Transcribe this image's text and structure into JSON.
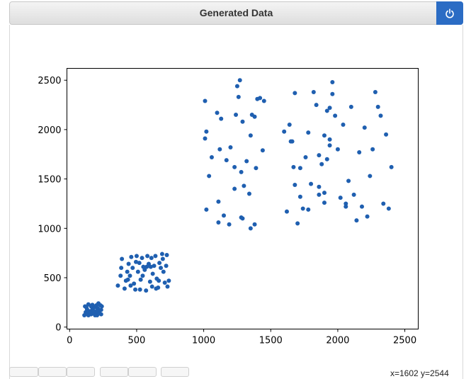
{
  "window": {
    "title": "Generated Data",
    "power_icon": "power-icon"
  },
  "status": {
    "coordinates": "x=1602 y=2544"
  },
  "toolbar": {
    "buttons": [
      "home-icon",
      "back-icon",
      "forward-icon",
      "pan-icon",
      "zoom-icon",
      "save-icon"
    ]
  },
  "chart_data": {
    "type": "scatter",
    "title": "",
    "xlabel": "",
    "ylabel": "",
    "xlim": [
      -20,
      2600
    ],
    "ylim": [
      -20,
      2620
    ],
    "xticks": [
      "0",
      "500",
      "1000",
      "1500",
      "2000",
      "2500"
    ],
    "yticks": [
      "0",
      "500",
      "1000",
      "1500",
      "2000",
      "2500"
    ],
    "grid": false,
    "color": "#1f5fb0",
    "points": [
      [
        110,
        120
      ],
      [
        120,
        150
      ],
      [
        130,
        140
      ],
      [
        115,
        210
      ],
      [
        140,
        230
      ],
      [
        160,
        130
      ],
      [
        170,
        180
      ],
      [
        185,
        200
      ],
      [
        195,
        150
      ],
      [
        205,
        120
      ],
      [
        215,
        240
      ],
      [
        225,
        170
      ],
      [
        235,
        130
      ],
      [
        240,
        210
      ],
      [
        150,
        160
      ],
      [
        175,
        140
      ],
      [
        200,
        220
      ],
      [
        220,
        150
      ],
      [
        130,
        180
      ],
      [
        190,
        120
      ],
      [
        210,
        190
      ],
      [
        160,
        210
      ],
      [
        180,
        160
      ],
      [
        140,
        120
      ],
      [
        230,
        220
      ],
      [
        125,
        200
      ],
      [
        155,
        135
      ],
      [
        205,
        165
      ],
      [
        235,
        175
      ],
      [
        170,
        225
      ],
      [
        360,
        420
      ],
      [
        380,
        520
      ],
      [
        390,
        690
      ],
      [
        410,
        390
      ],
      [
        420,
        470
      ],
      [
        430,
        560
      ],
      [
        440,
        640
      ],
      [
        450,
        520
      ],
      [
        460,
        710
      ],
      [
        470,
        600
      ],
      [
        480,
        440
      ],
      [
        490,
        380
      ],
      [
        500,
        720
      ],
      [
        510,
        560
      ],
      [
        520,
        650
      ],
      [
        530,
        480
      ],
      [
        540,
        700
      ],
      [
        550,
        610
      ],
      [
        560,
        580
      ],
      [
        570,
        370
      ],
      [
        580,
        720
      ],
      [
        590,
        640
      ],
      [
        600,
        460
      ],
      [
        610,
        700
      ],
      [
        620,
        540
      ],
      [
        630,
        620
      ],
      [
        640,
        720
      ],
      [
        650,
        490
      ],
      [
        660,
        400
      ],
      [
        670,
        650
      ],
      [
        680,
        600
      ],
      [
        690,
        740
      ],
      [
        700,
        560
      ],
      [
        710,
        450
      ],
      [
        720,
        620
      ],
      [
        730,
        410
      ],
      [
        740,
        470
      ],
      [
        385,
        600
      ],
      [
        455,
        420
      ],
      [
        525,
        380
      ],
      [
        575,
        610
      ],
      [
        665,
        470
      ],
      [
        695,
        690
      ],
      [
        615,
        410
      ],
      [
        545,
        520
      ],
      [
        495,
        660
      ],
      [
        435,
        480
      ],
      [
        605,
        610
      ],
      [
        725,
        730
      ],
      [
        645,
        390
      ],
      [
        1010,
        2290
      ],
      [
        1020,
        1980
      ],
      [
        1040,
        1530
      ],
      [
        1100,
        2170
      ],
      [
        1120,
        1800
      ],
      [
        1130,
        2110
      ],
      [
        1150,
        1130
      ],
      [
        1170,
        1690
      ],
      [
        1200,
        1820
      ],
      [
        1230,
        1620
      ],
      [
        1240,
        2150
      ],
      [
        1250,
        2440
      ],
      [
        1260,
        2330
      ],
      [
        1270,
        2500
      ],
      [
        1280,
        1570
      ],
      [
        1290,
        1100
      ],
      [
        1300,
        1430
      ],
      [
        1320,
        1680
      ],
      [
        1340,
        1350
      ],
      [
        1350,
        1940
      ],
      [
        1360,
        2150
      ],
      [
        1380,
        1040
      ],
      [
        1390,
        1610
      ],
      [
        1400,
        2310
      ],
      [
        1420,
        2320
      ],
      [
        1440,
        1790
      ],
      [
        1450,
        2290
      ],
      [
        1010,
        1910
      ],
      [
        1020,
        1190
      ],
      [
        1110,
        1060
      ],
      [
        1190,
        1040
      ],
      [
        1290,
        2080
      ],
      [
        1350,
        1000
      ],
      [
        1380,
        2130
      ],
      [
        1230,
        1400
      ],
      [
        1280,
        1110
      ],
      [
        1110,
        1270
      ],
      [
        1060,
        1720
      ],
      [
        1600,
        1980
      ],
      [
        1620,
        1170
      ],
      [
        1640,
        2050
      ],
      [
        1650,
        1880
      ],
      [
        1670,
        1620
      ],
      [
        1680,
        2370
      ],
      [
        1700,
        1050
      ],
      [
        1720,
        1610
      ],
      [
        1740,
        1200
      ],
      [
        1760,
        1720
      ],
      [
        1780,
        1970
      ],
      [
        1800,
        1450
      ],
      [
        1820,
        2380
      ],
      [
        1840,
        2250
      ],
      [
        1860,
        1420
      ],
      [
        1880,
        1650
      ],
      [
        1900,
        1940
      ],
      [
        1920,
        2190
      ],
      [
        1940,
        1840
      ],
      [
        1960,
        2480
      ],
      [
        1980,
        2140
      ],
      [
        2000,
        1800
      ],
      [
        2020,
        1310
      ],
      [
        2040,
        2050
      ],
      [
        2060,
        1250
      ],
      [
        2080,
        1480
      ],
      [
        2100,
        2230
      ],
      [
        2120,
        1340
      ],
      [
        2140,
        1080
      ],
      [
        2160,
        1770
      ],
      [
        2180,
        1220
      ],
      [
        2200,
        2020
      ],
      [
        2220,
        1120
      ],
      [
        2240,
        1530
      ],
      [
        2260,
        1800
      ],
      [
        2280,
        2380
      ],
      [
        2300,
        2230
      ],
      [
        2320,
        2140
      ],
      [
        2340,
        1250
      ],
      [
        2360,
        1950
      ],
      [
        2380,
        1200
      ],
      [
        2400,
        1620
      ],
      [
        1680,
        1440
      ],
      [
        1860,
        1340
      ],
      [
        1920,
        1700
      ],
      [
        1960,
        2360
      ],
      [
        1780,
        1190
      ],
      [
        1900,
        1260
      ],
      [
        2060,
        1220
      ],
      [
        1720,
        1320
      ],
      [
        1900,
        1360
      ],
      [
        1940,
        1900
      ],
      [
        1860,
        1740
      ],
      [
        1660,
        1880
      ],
      [
        1940,
        2220
      ]
    ]
  }
}
